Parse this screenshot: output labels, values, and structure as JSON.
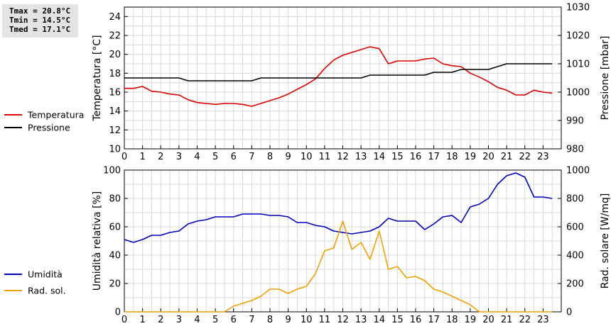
{
  "stats": {
    "tmax": "Tmax = 20.8°C",
    "tmin": "Tmin = 14.5°C",
    "tmed": "Tmed = 17.1°C"
  },
  "colors": {
    "temperature": "#dd0000",
    "pressure": "#000000",
    "humidity": "#0000bb",
    "solar": "#f0a000",
    "grid": "#d8d8d8"
  },
  "chart_data": [
    {
      "type": "line",
      "x_ticks": [
        "0",
        "1",
        "2",
        "3",
        "4",
        "5",
        "6",
        "7",
        "8",
        "9",
        "10",
        "11",
        "12",
        "13",
        "14",
        "15",
        "16",
        "17",
        "18",
        "19",
        "20",
        "21",
        "22",
        "23"
      ],
      "xlim": [
        0,
        24
      ],
      "ylabel": "Temperatura [°C]",
      "ylim": [
        10,
        25
      ],
      "y_ticks": [
        "10",
        "12",
        "14",
        "16",
        "18",
        "20",
        "22",
        "24"
      ],
      "y2label": "Pressione [mbar]",
      "y2lim": [
        980,
        1030
      ],
      "y2_ticks": [
        "980",
        "990",
        "1000",
        "1010",
        "1020",
        "1030"
      ],
      "grid": true,
      "legend_position": "left",
      "series": [
        {
          "name": "Temperatura",
          "axis": "left",
          "color": "#dd0000",
          "x": [
            0,
            0.5,
            1,
            1.5,
            2,
            2.5,
            3,
            3.5,
            4,
            4.5,
            5,
            5.5,
            6,
            6.5,
            7,
            7.5,
            8,
            8.5,
            9,
            9.5,
            10,
            10.5,
            11,
            11.5,
            12,
            12.5,
            13,
            13.5,
            14,
            14.5,
            15,
            15.5,
            16,
            16.5,
            17,
            17.5,
            18,
            18.5,
            19,
            19.5,
            20,
            20.5,
            21,
            21.5,
            22,
            22.5,
            23,
            23.5
          ],
          "y": [
            16.4,
            16.4,
            16.6,
            16.1,
            16.0,
            15.8,
            15.7,
            15.2,
            14.9,
            14.8,
            14.7,
            14.8,
            14.8,
            14.7,
            14.5,
            14.8,
            15.1,
            15.4,
            15.8,
            16.3,
            16.8,
            17.4,
            18.5,
            19.4,
            19.9,
            20.2,
            20.5,
            20.8,
            20.6,
            19.0,
            19.3,
            19.3,
            19.3,
            19.5,
            19.6,
            19.0,
            18.8,
            18.7,
            18.0,
            17.6,
            17.1,
            16.5,
            16.2,
            15.7,
            15.7,
            16.2,
            16.0,
            15.9
          ]
        },
        {
          "name": "Pressione",
          "axis": "right",
          "color": "#000000",
          "x": [
            0,
            1,
            2,
            3,
            3.5,
            4,
            5,
            6,
            7,
            7.5,
            8,
            9,
            10,
            11,
            12,
            13,
            13.5,
            14,
            15,
            16,
            16.5,
            17,
            18,
            18.5,
            19,
            20,
            21,
            22,
            23,
            23.5
          ],
          "y": [
            1005,
            1005,
            1005,
            1005,
            1004,
            1004,
            1004,
            1004,
            1004,
            1005,
            1005,
            1005,
            1005,
            1005,
            1005,
            1005,
            1006,
            1006,
            1006,
            1006,
            1006,
            1007,
            1007,
            1008,
            1008,
            1008,
            1010,
            1010,
            1010,
            1010
          ]
        }
      ]
    },
    {
      "type": "line",
      "x_ticks": [
        "0",
        "1",
        "2",
        "3",
        "4",
        "5",
        "6",
        "7",
        "8",
        "9",
        "10",
        "11",
        "12",
        "13",
        "14",
        "15",
        "16",
        "17",
        "18",
        "19",
        "20",
        "21",
        "22",
        "23"
      ],
      "xlim": [
        0,
        24
      ],
      "ylabel": "Umidità relativa [%]",
      "ylim": [
        0,
        100
      ],
      "y_ticks": [
        "0",
        "20",
        "40",
        "60",
        "80",
        "100"
      ],
      "y2label": "Rad. solare [W/mq]",
      "y2lim": [
        0,
        1000
      ],
      "y2_ticks": [
        "0",
        "200",
        "400",
        "600",
        "800",
        "1000"
      ],
      "grid": true,
      "legend_position": "left",
      "series": [
        {
          "name": "Umidità",
          "axis": "left",
          "color": "#0000bb",
          "x": [
            0,
            0.5,
            1,
            1.5,
            2,
            2.5,
            3,
            3.5,
            4,
            4.5,
            5,
            5.5,
            6,
            6.5,
            7,
            7.5,
            8,
            8.5,
            9,
            9.5,
            10,
            10.5,
            11,
            11.5,
            12,
            12.5,
            13,
            13.5,
            14,
            14.5,
            15,
            15.5,
            16,
            16.5,
            17,
            17.5,
            18,
            18.5,
            19,
            19.5,
            20,
            20.5,
            21,
            21.5,
            22,
            22.5,
            23,
            23.5
          ],
          "y": [
            51,
            49,
            51,
            54,
            54,
            56,
            57,
            62,
            64,
            65,
            67,
            67,
            67,
            69,
            69,
            69,
            68,
            68,
            67,
            63,
            63,
            61,
            60,
            57,
            56,
            55,
            56,
            57,
            60,
            66,
            64,
            64,
            64,
            58,
            62,
            67,
            68,
            63,
            74,
            76,
            80,
            90,
            96,
            98,
            95,
            81,
            81,
            80
          ]
        },
        {
          "name": "Rad. sol.",
          "axis": "right",
          "color": "#f0a000",
          "x": [
            0,
            0.5,
            1,
            1.5,
            2,
            2.5,
            3,
            3.5,
            4,
            4.5,
            5,
            5.5,
            6,
            6.5,
            7,
            7.5,
            8,
            8.5,
            9,
            9.5,
            10,
            10.5,
            11,
            11.5,
            12,
            12.5,
            13,
            13.5,
            14,
            14.5,
            15,
            15.5,
            16,
            16.5,
            17,
            17.5,
            18,
            18.5,
            19,
            19.5,
            20,
            20.5,
            21,
            21.5,
            22,
            22.5,
            23,
            23.5
          ],
          "y": [
            0,
            0,
            0,
            0,
            0,
            0,
            0,
            0,
            0,
            0,
            0,
            0,
            40,
            60,
            80,
            110,
            160,
            160,
            130,
            160,
            180,
            270,
            430,
            450,
            640,
            440,
            490,
            370,
            570,
            300,
            320,
            240,
            250,
            220,
            160,
            140,
            110,
            80,
            50,
            0,
            0,
            0,
            0,
            0,
            0,
            0,
            0,
            0
          ]
        }
      ]
    }
  ]
}
